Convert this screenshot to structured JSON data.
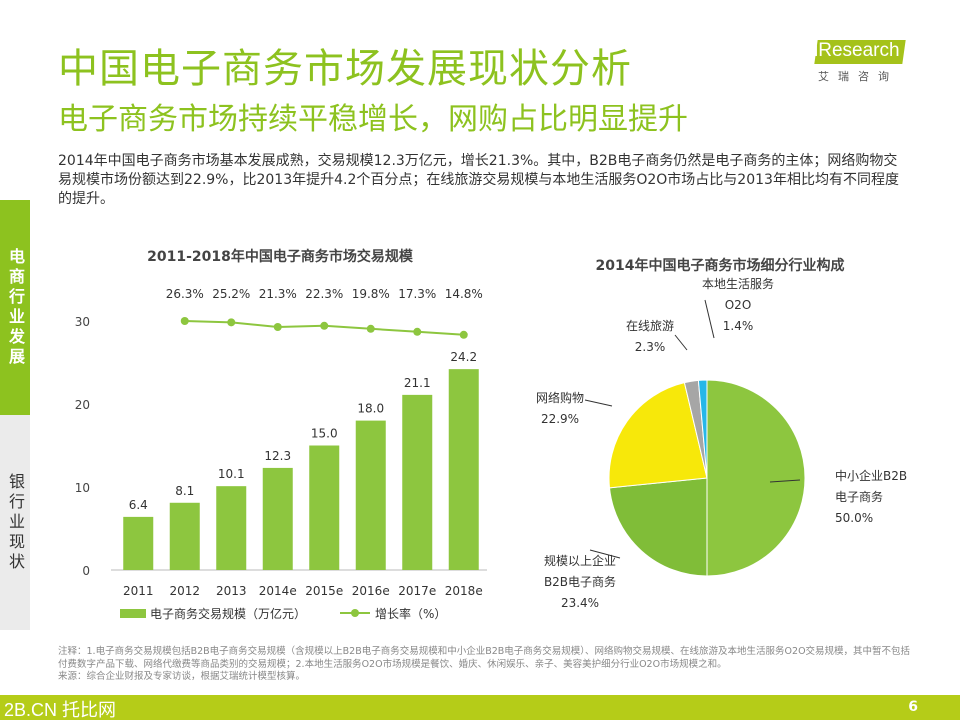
{
  "header": {
    "title": "中国电子商务市场发展现状分析",
    "subtitle": "电子商务市场持续平稳增长，网购占比明显提升",
    "logo_text": "iResearch",
    "logo_cn": "艾瑞咨询"
  },
  "intro": "2014年中国电子商务市场基本发展成熟，交易规模12.3万亿元，增长21.3%。其中，B2B电子商务仍然是电子商务的主体；网络购物交易规模市场份额达到22.9%，比2013年提升4.2个百分点；在线旅游交易规模与本地生活服务O2O市场占比与2013年相比均有不同程度的提升。",
  "sidebar": {
    "items": [
      {
        "label": "电商行业发展",
        "active": true
      },
      {
        "label": "银行业现状",
        "active": false
      }
    ]
  },
  "colors": {
    "accent": "#8dc21f",
    "bar": "#8dc63f",
    "line": "#8dc63f",
    "footer": "#b5cc18"
  },
  "chart_data": [
    {
      "type": "bar",
      "title": "2011-2018年中国电子商务市场交易规模",
      "categories": [
        "2011",
        "2012",
        "2013",
        "2014e",
        "2015e",
        "2016e",
        "2017e",
        "2018e"
      ],
      "series": [
        {
          "name": "电子商务交易规模（万亿元）",
          "type": "bar",
          "values": [
            6.4,
            8.1,
            10.1,
            12.3,
            15.0,
            18.0,
            21.1,
            24.2
          ],
          "labels": [
            "6.4",
            "8.1",
            "10.1",
            "12.3",
            "15.0",
            "18.0",
            "21.1",
            "24.2"
          ]
        },
        {
          "name": "增长率（%）",
          "type": "line",
          "values": [
            null,
            26.3,
            25.2,
            21.3,
            22.3,
            19.8,
            17.3,
            14.8
          ],
          "labels": [
            "",
            "26.3%",
            "25.2%",
            "21.3%",
            "22.3%",
            "19.8%",
            "17.3%",
            "14.8%"
          ]
        }
      ],
      "yticks": [
        "0",
        "10",
        "20",
        "30"
      ],
      "ylim": [
        0,
        30
      ],
      "legend": "bottom",
      "grid": false
    },
    {
      "type": "pie",
      "title": "2014年中国电子商务市场细分行业构成",
      "slices": [
        {
          "label": [
            "中小企业B2B",
            "电子商务"
          ],
          "value": 50.0,
          "pct": "50.0%",
          "color": "#8dc63f"
        },
        {
          "label": [
            "规模以上企业",
            "B2B电子商务"
          ],
          "value": 23.4,
          "pct": "23.4%",
          "color": "#80bd38"
        },
        {
          "label": [
            "网络购物"
          ],
          "value": 22.9,
          "pct": "22.9%",
          "color": "#f7e80a"
        },
        {
          "label": [
            "在线旅游"
          ],
          "value": 2.3,
          "pct": "2.3%",
          "color": "#a6a6a6"
        },
        {
          "label": [
            "本地生活服务",
            "O2O"
          ],
          "value": 1.4,
          "pct": "1.4%",
          "color": "#26b7e8"
        }
      ]
    }
  ],
  "notes": [
    "注释：1.电子商务交易规模包括B2B电子商务交易规模（含规模以上B2B电子商务交易规模和中小企业B2B电子商务交易规模）、网络购物交易规模、在线旅游及本地生活服务O2O交易规模，其中暂不包括付费数字产品下载、网络代缴费等商品类别的交易规模；2.本地生活服务O2O市场规模是餐饮、婚庆、休闲娱乐、亲子、美容美护细分行业O2O市场规模之和。",
    "来源：综合企业财报及专家访谈，根据艾瑞统计模型核算。"
  ],
  "footer": {
    "brand": "2B.CN 托比网",
    "page": "6"
  }
}
